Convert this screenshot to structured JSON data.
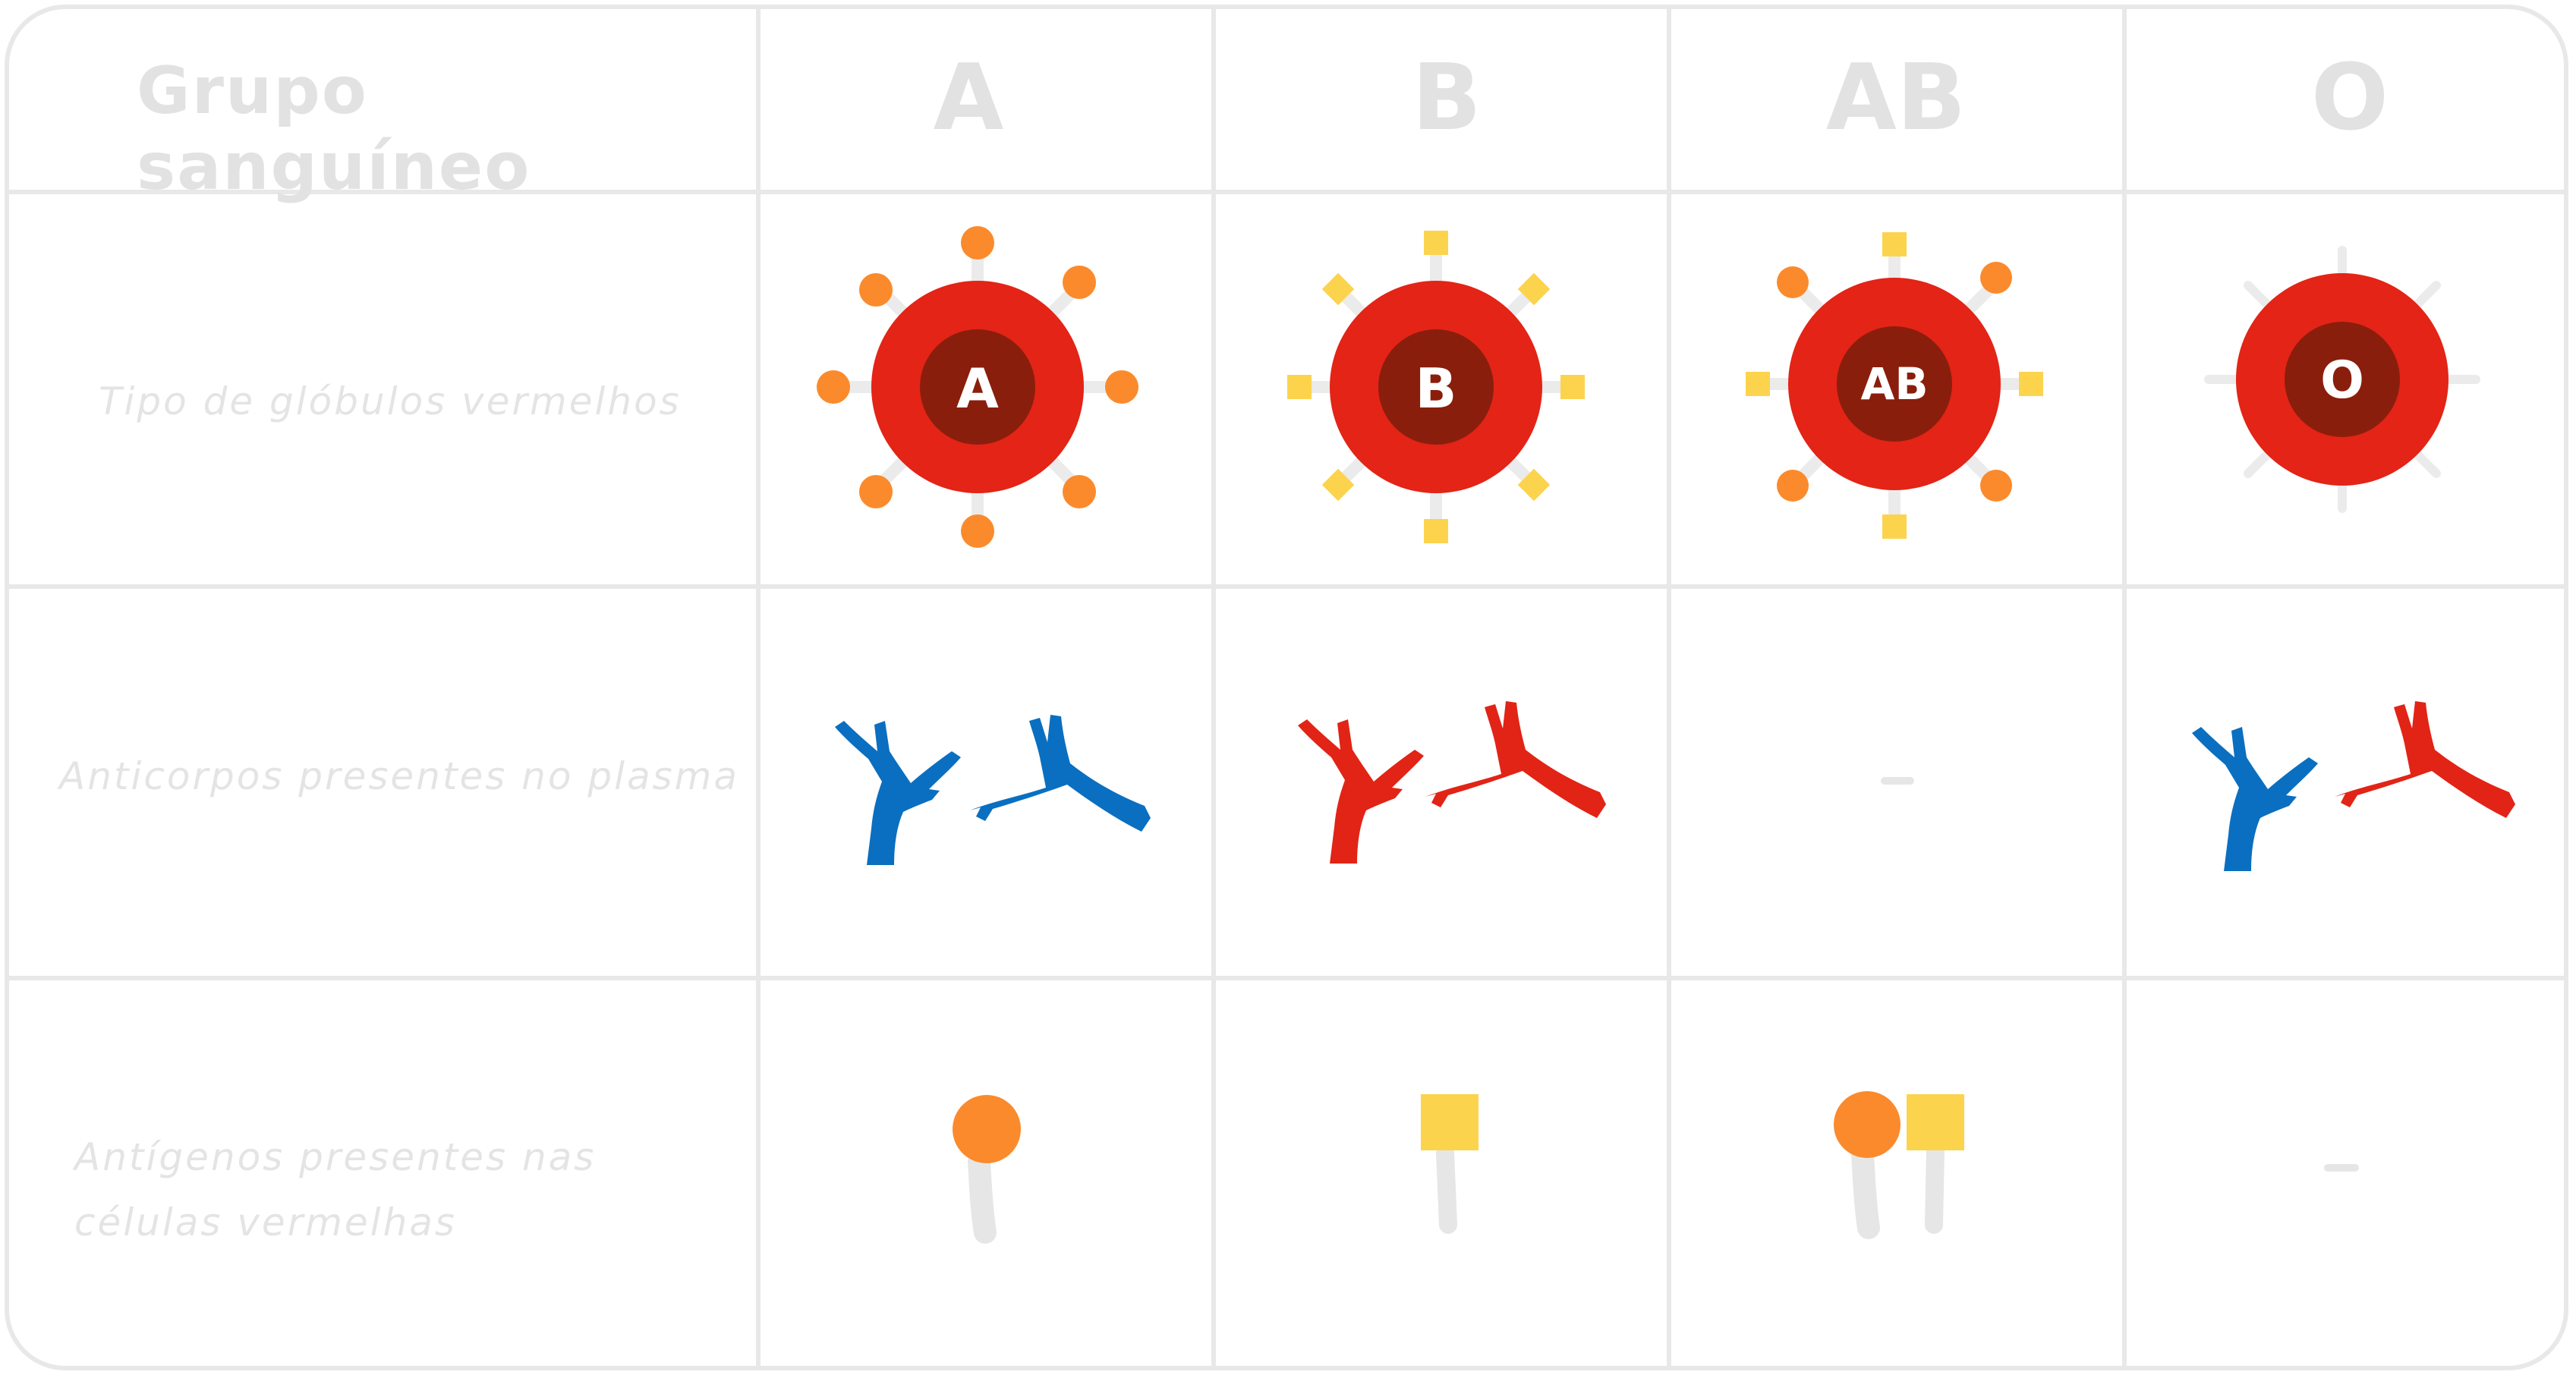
{
  "headers": {
    "group": "Grupo sanguíneo",
    "types": [
      "A",
      "B",
      "AB",
      "O"
    ]
  },
  "rows": {
    "cell_type": "Tipo de glóbulos vermelhos",
    "antibodies": "Anticorpos presentes no plasma",
    "antigens_line1": "Antígenos presentes nas",
    "antigens_line2": "células vermelhas"
  },
  "cells": {
    "A": {
      "cell_label": "A",
      "antibodies": "anti-B",
      "antigens": "A"
    },
    "B": {
      "cell_label": "B",
      "antibodies": "anti-A",
      "antigens": "B"
    },
    "AB": {
      "cell_label": "AB",
      "antibodies": "–",
      "antigens": "A, B"
    },
    "O": {
      "cell_label": "O",
      "antibodies": "anti-A, anti-B",
      "antigens": "–"
    }
  },
  "colors": {
    "red_cell": "#e32416",
    "cell_core": "#8a1e0c",
    "antigen_a": "#fb8a2c",
    "antigen_b": "#fcd34d",
    "antibody_blue": "#0a6fc0",
    "antibody_red": "#e12416",
    "grid": "#e8e8e8",
    "text": "#e4e4e4"
  }
}
